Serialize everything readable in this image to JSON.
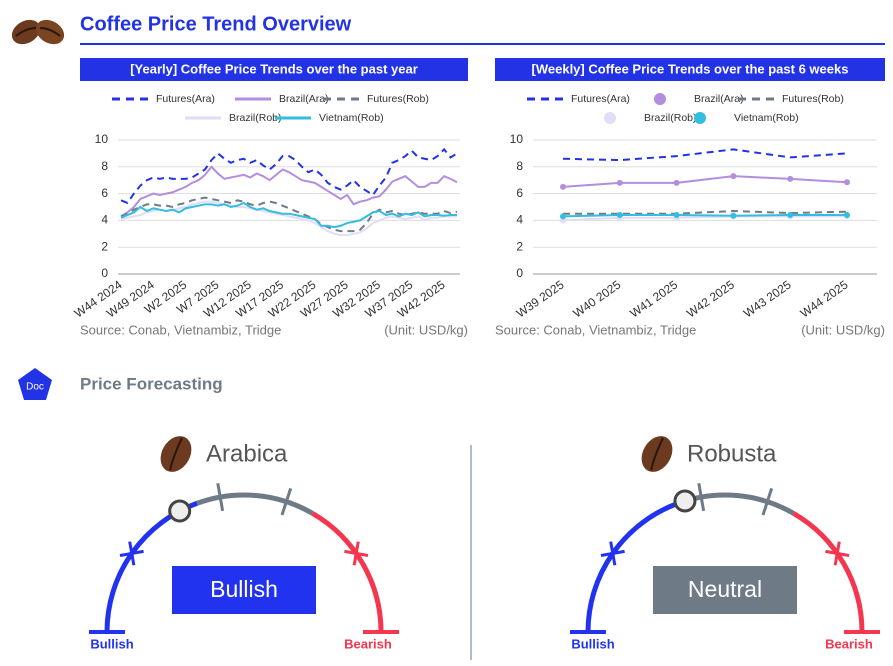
{
  "title": "Coffee Price Trend Overview",
  "chart_data": [
    {
      "type": "line",
      "title": "[Yearly] Coffee Price Trends over the past year",
      "source": "Source: Conab, Vietnambiz, Tridge",
      "unit": "(Unit: USD/kg)",
      "categories": [
        "W44 2024",
        null,
        null,
        null,
        null,
        "W49 2024",
        null,
        null,
        null,
        null,
        "W2 2025",
        null,
        null,
        null,
        null,
        "W7 2025",
        null,
        null,
        null,
        null,
        "W12 2025",
        null,
        null,
        null,
        null,
        "W17 2025",
        null,
        null,
        null,
        null,
        "W22 2025",
        null,
        null,
        null,
        null,
        "W27 2025",
        null,
        null,
        null,
        null,
        "W32 2025",
        null,
        null,
        null,
        null,
        "W37 2025",
        null,
        null,
        null,
        null,
        "W42 2025",
        null,
        null
      ],
      "ylim": [
        0,
        10
      ],
      "yticks": [
        0,
        2,
        4,
        6,
        8,
        10
      ],
      "series": [
        {
          "name": "Futures(Ara)",
          "color": "#2233e6",
          "dash": true,
          "markers": false,
          "values": [
            5.5,
            5.3,
            6.0,
            6.6,
            7.0,
            7.2,
            7.1,
            7.2,
            7.1,
            7.1,
            7.1,
            7.2,
            7.5,
            7.8,
            8.5,
            9.0,
            8.6,
            8.3,
            8.5,
            8.6,
            8.3,
            8.5,
            8.1,
            7.8,
            8.2,
            8.8,
            8.8,
            8.5,
            8.0,
            7.6,
            7.8,
            7.4,
            6.8,
            6.5,
            6.3,
            6.6,
            7.0,
            6.5,
            6.2,
            5.9,
            6.6,
            7.2,
            8.3,
            8.5,
            8.8,
            9.2,
            8.7,
            8.6,
            8.5,
            8.8,
            9.3,
            8.7,
            9.0
          ]
        },
        {
          "name": "Brazil(Ara)",
          "color": "#b28ee0",
          "dash": false,
          "markers": false,
          "values": [
            4.3,
            4.6,
            5.0,
            5.6,
            5.8,
            6.0,
            5.9,
            6.0,
            6.1,
            6.3,
            6.5,
            6.8,
            7.0,
            7.4,
            8.0,
            7.5,
            7.1,
            7.2,
            7.3,
            7.4,
            7.2,
            7.5,
            7.3,
            7.0,
            7.4,
            7.8,
            7.6,
            7.3,
            7.0,
            6.9,
            6.8,
            6.5,
            6.2,
            5.9,
            5.6,
            5.9,
            5.2,
            5.4,
            5.5,
            5.7,
            5.8,
            6.3,
            6.9,
            7.1,
            7.3,
            6.9,
            6.5,
            6.5,
            6.8,
            6.8,
            7.3,
            7.1,
            6.85
          ]
        },
        {
          "name": "Futures(Rob)",
          "color": "#6e7b86",
          "dash": true,
          "markers": false,
          "values": [
            4.3,
            4.5,
            4.8,
            5.0,
            5.2,
            5.2,
            5.1,
            5.1,
            5.0,
            5.2,
            5.3,
            5.5,
            5.6,
            5.7,
            5.6,
            5.5,
            5.4,
            5.3,
            5.5,
            5.4,
            5.2,
            5.1,
            5.3,
            5.4,
            5.3,
            5.1,
            4.9,
            4.7,
            4.5,
            4.3,
            4.1,
            3.7,
            3.5,
            3.3,
            3.2,
            3.2,
            3.2,
            3.3,
            3.8,
            4.5,
            4.8,
            4.6,
            4.7,
            4.5,
            4.4,
            4.5,
            4.6,
            4.5,
            4.5,
            4.5,
            4.7,
            4.55,
            4.65
          ]
        },
        {
          "name": "Brazil(Rob)",
          "color": "#e2dcf5",
          "dash": false,
          "markers": false,
          "values": [
            4.1,
            4.2,
            4.3,
            4.4,
            4.6,
            4.7,
            4.8,
            4.7,
            4.8,
            4.9,
            5.0,
            5.2,
            5.3,
            5.4,
            5.4,
            5.3,
            5.2,
            5.1,
            5.0,
            5.0,
            4.9,
            4.8,
            4.7,
            4.6,
            4.5,
            4.4,
            4.3,
            4.2,
            4.1,
            4.0,
            3.8,
            3.5,
            3.2,
            3.0,
            2.9,
            2.9,
            3.0,
            3.1,
            3.4,
            3.8,
            4.0,
            4.2,
            4.3,
            4.2,
            4.1,
            4.2,
            4.3,
            4.0,
            4.2,
            4.2,
            4.3,
            4.3,
            4.3
          ]
        },
        {
          "name": "Vietnam(Rob)",
          "color": "#33bde0",
          "dash": false,
          "markers": false,
          "values": [
            4.2,
            4.4,
            4.6,
            5.0,
            4.7,
            4.9,
            4.8,
            4.7,
            4.8,
            4.6,
            4.9,
            5.0,
            5.1,
            5.2,
            5.2,
            5.1,
            5.2,
            5.0,
            5.1,
            5.3,
            5.0,
            4.8,
            4.9,
            4.7,
            4.6,
            4.5,
            4.5,
            4.4,
            4.3,
            4.2,
            4.1,
            3.6,
            3.6,
            3.5,
            3.6,
            3.8,
            3.9,
            4.0,
            4.3,
            4.6,
            4.7,
            4.4,
            4.5,
            4.3,
            4.5,
            4.4,
            4.6,
            4.3,
            4.4,
            4.4,
            4.35,
            4.4,
            4.4
          ]
        }
      ]
    },
    {
      "type": "line",
      "title": "[Weekly] Coffee Price Trends over the past 6 weeks",
      "source": "Source: Conab, Vietnambiz, Tridge",
      "unit": "(Unit: USD/kg)",
      "categories": [
        "W39 2025",
        "W40 2025",
        "W41 2025",
        "W42 2025",
        "W43 2025",
        "W44 2025"
      ],
      "ylim": [
        0,
        10
      ],
      "yticks": [
        0,
        2,
        4,
        6,
        8,
        10
      ],
      "series": [
        {
          "name": "Futures(Ara)",
          "color": "#2233e6",
          "dash": true,
          "markers": false,
          "values": [
            8.6,
            8.5,
            8.8,
            9.3,
            8.7,
            9.0
          ]
        },
        {
          "name": "Brazil(Ara)",
          "color": "#b28ee0",
          "dash": false,
          "markers": true,
          "values": [
            6.5,
            6.8,
            6.8,
            7.3,
            7.1,
            6.85
          ]
        },
        {
          "name": "Futures(Rob)",
          "color": "#6e7b86",
          "dash": true,
          "markers": false,
          "values": [
            4.5,
            4.5,
            4.5,
            4.7,
            4.55,
            4.65
          ]
        },
        {
          "name": "Brazil(Rob)",
          "color": "#e2dcf5",
          "dash": false,
          "markers": true,
          "values": [
            4.0,
            4.2,
            4.2,
            4.3,
            4.3,
            4.3
          ]
        },
        {
          "name": "Vietnam(Rob)",
          "color": "#33bde0",
          "dash": false,
          "markers": true,
          "values": [
            4.3,
            4.4,
            4.4,
            4.35,
            4.4,
            4.4
          ]
        }
      ]
    }
  ],
  "forecast": {
    "icon": "Doc",
    "title": "Price Forecasting",
    "gauges": [
      {
        "name": "Arabica",
        "signal": "Bullish",
        "left": "Bullish",
        "right": "Bearish"
      },
      {
        "name": "Robusta",
        "signal": "Neutral",
        "left": "Bullish",
        "right": "Bearish"
      }
    ]
  }
}
